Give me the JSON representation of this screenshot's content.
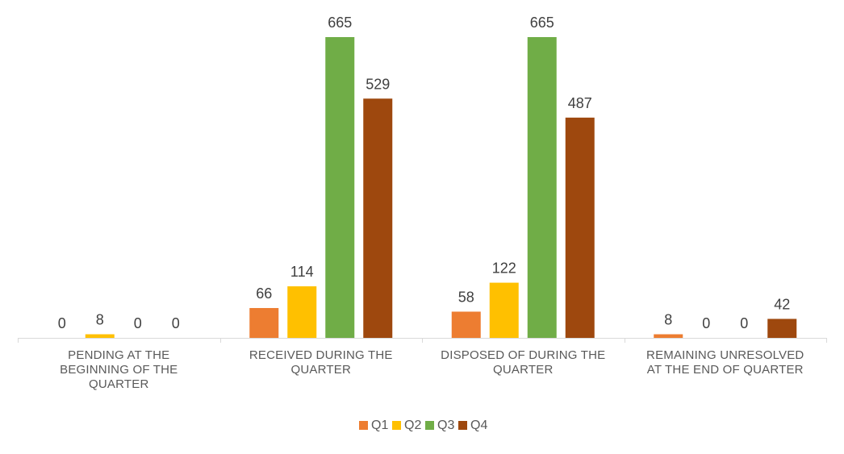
{
  "chart_data": {
    "type": "bar",
    "categories": [
      [
        "PENDING AT THE",
        "BEGINNING OF THE",
        "QUARTER"
      ],
      [
        "RECEIVED DURING THE",
        "QUARTER"
      ],
      [
        "DISPOSED OF DURING THE",
        "QUARTER"
      ],
      [
        "REMAINING UNRESOLVED",
        "AT THE END OF QUARTER"
      ]
    ],
    "series": [
      {
        "name": "Q1",
        "color": "#ED7D31",
        "values": [
          0,
          66,
          58,
          8
        ]
      },
      {
        "name": "Q2",
        "color": "#FFC000",
        "values": [
          8,
          114,
          122,
          0
        ]
      },
      {
        "name": "Q3",
        "color": "#70AD47",
        "values": [
          0,
          665,
          665,
          0
        ]
      },
      {
        "name": "Q4",
        "color": "#9E480E",
        "values": [
          0,
          529,
          487,
          42
        ]
      }
    ],
    "title": "",
    "xlabel": "",
    "ylabel": "",
    "ylim": [
      0,
      665
    ],
    "grid": false,
    "legend": "bottom"
  }
}
